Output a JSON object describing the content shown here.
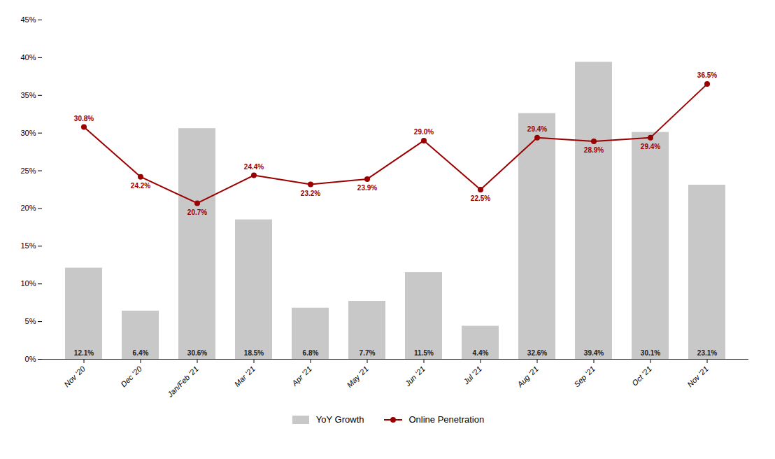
{
  "chart_data": {
    "type": "bar",
    "categories": [
      "Nov '20",
      "Dec '20",
      "Jan/Feb '21",
      "Mar '21",
      "Apr '21",
      "May '21",
      "Jun '21",
      "Jul '21",
      "Aug '21",
      "Sep '21",
      "Oct '21",
      "Nov '21"
    ],
    "series": [
      {
        "name": "YoY Growth",
        "type": "bar",
        "color": "#c8c8c8",
        "values": [
          12.1,
          6.4,
          30.6,
          18.5,
          6.8,
          7.7,
          11.5,
          4.4,
          32.6,
          39.4,
          30.1,
          23.1
        ],
        "value_labels": [
          "12.1%",
          "6.4%",
          "30.6%",
          "18.5%",
          "6.8%",
          "7.7%",
          "11.5%",
          "4.4%",
          "32.6%",
          "39.4%",
          "30.1%",
          "23.1%"
        ]
      },
      {
        "name": "Online Penetration",
        "type": "line",
        "color": "#9b0000",
        "marker": "circle",
        "values": [
          30.8,
          24.2,
          20.7,
          24.4,
          23.2,
          23.9,
          29.0,
          22.5,
          29.4,
          28.9,
          29.4,
          36.5
        ],
        "value_labels": [
          "30.8%",
          "24.2%",
          "20.7%",
          "24.4%",
          "23.2%",
          "23.9%",
          "29.0%",
          "22.5%",
          "29.4%",
          "28.9%",
          "29.4%",
          "36.5%"
        ]
      }
    ],
    "ylim": [
      0,
      45
    ],
    "yticks": [
      {
        "value": 0,
        "label": "0%"
      },
      {
        "value": 5,
        "label": "5%"
      },
      {
        "value": 10,
        "label": "10%"
      },
      {
        "value": 15,
        "label": "15%"
      },
      {
        "value": 20,
        "label": "20%"
      },
      {
        "value": 25,
        "label": "25%"
      },
      {
        "value": 30,
        "label": "30%"
      },
      {
        "value": 35,
        "label": "35%"
      },
      {
        "value": 40,
        "label": "40%"
      },
      {
        "value": 45,
        "label": "45%"
      }
    ],
    "grid": false,
    "legend": "bottom",
    "data_labels": true
  }
}
